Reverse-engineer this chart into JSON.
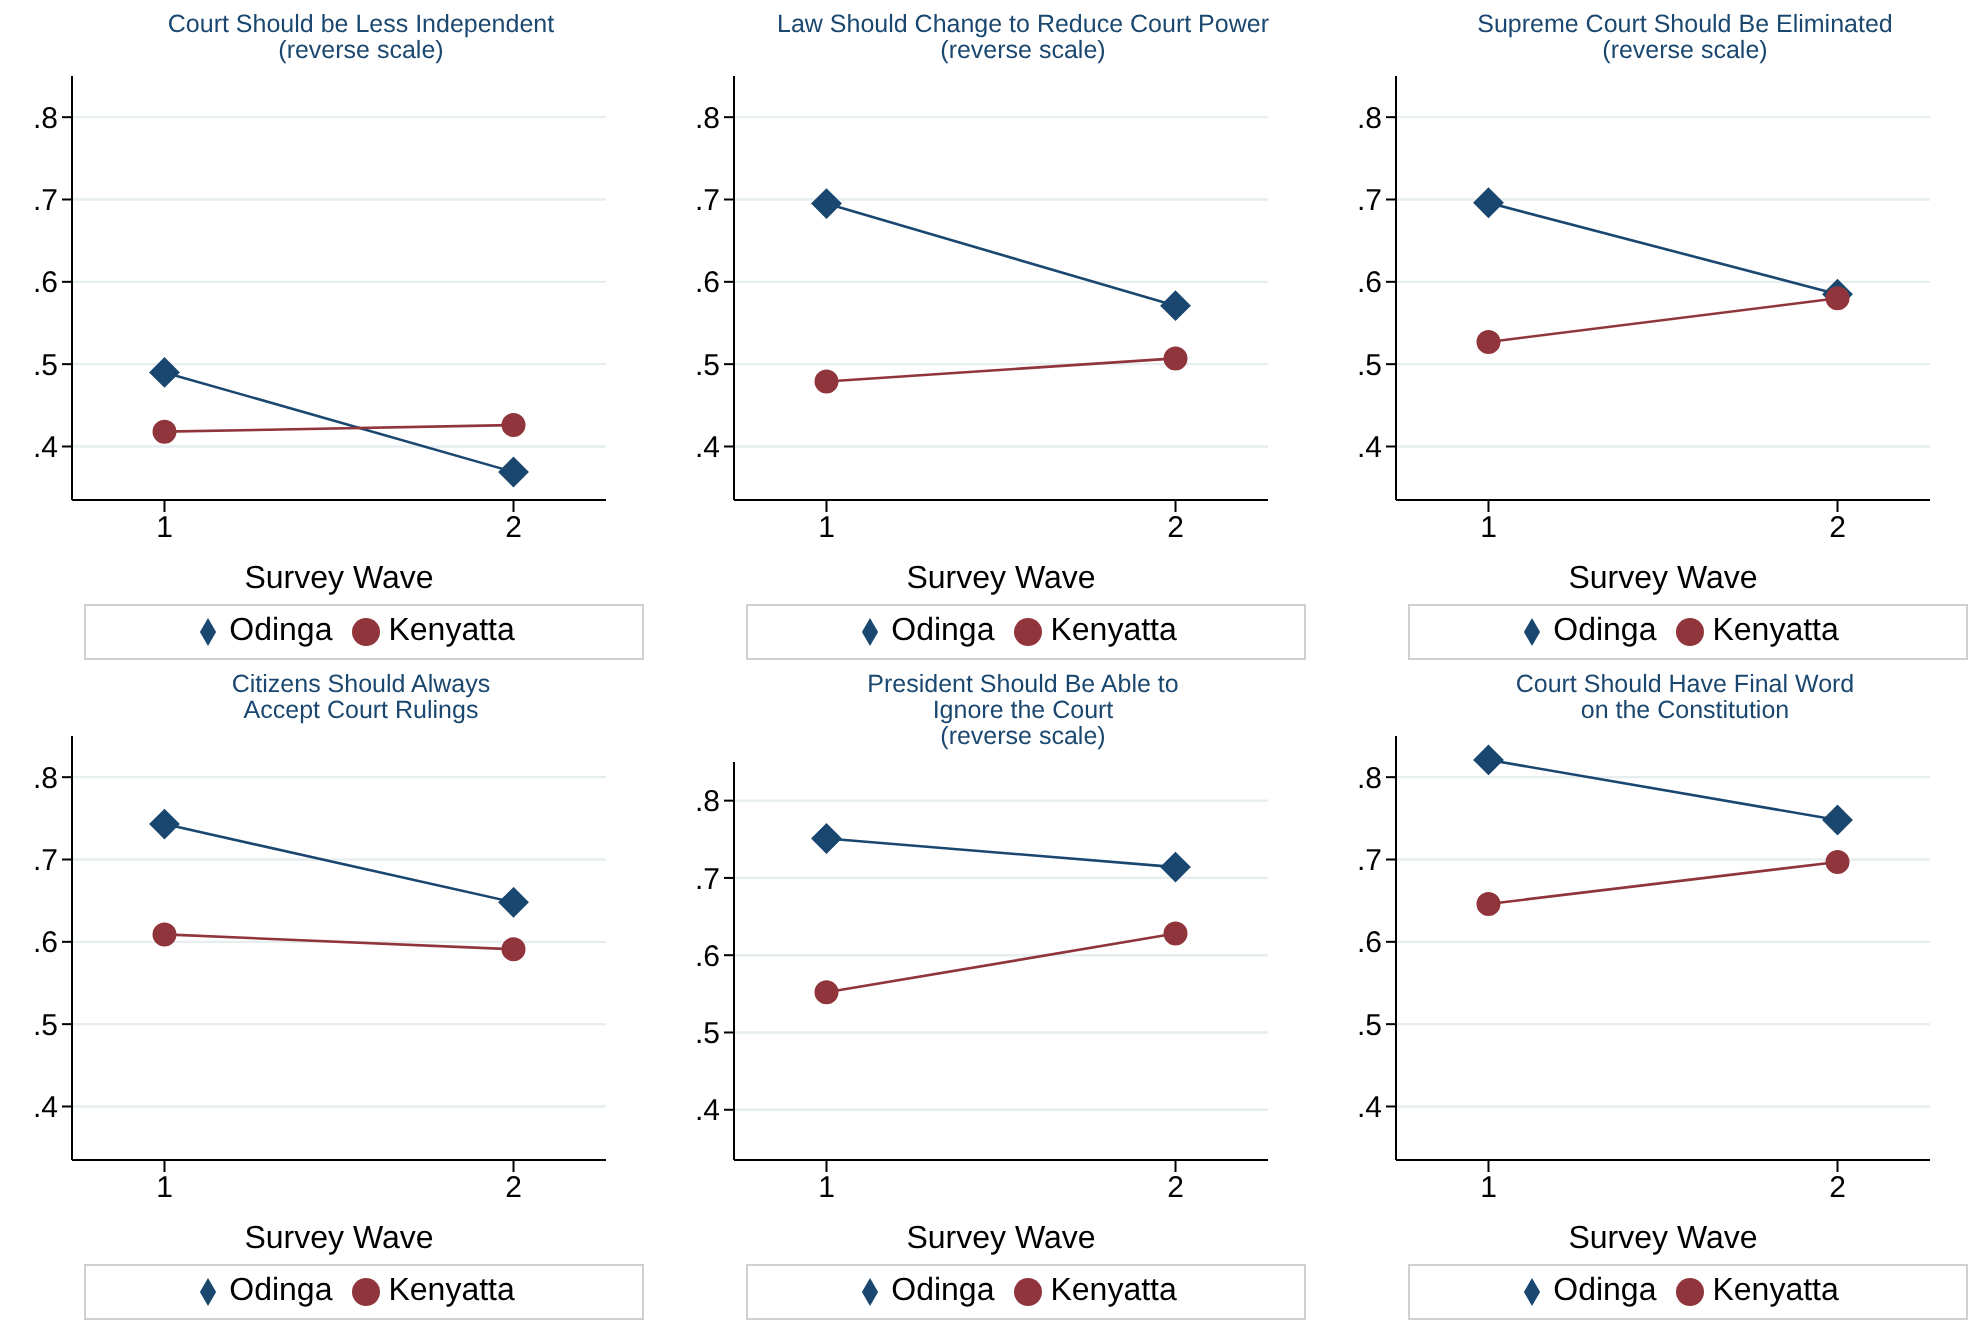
{
  "chart_data": [
    {
      "type": "line",
      "title": "Court Should be Less Independent\n(reverse scale)",
      "xlabel": "Survey Wave",
      "categories": [
        "1",
        "2"
      ],
      "ylim": [
        0.335,
        0.85
      ],
      "yticks": [
        {
          "value": 0.4,
          "label": ".4"
        },
        {
          "value": 0.5,
          "label": ".5"
        },
        {
          "value": 0.6,
          "label": ".6"
        },
        {
          "value": 0.7,
          "label": ".7"
        },
        {
          "value": 0.8,
          "label": ".8"
        }
      ],
      "grid": "y",
      "legend": "bottom",
      "series": [
        {
          "name": "Odinga",
          "color": "#1a476f",
          "marker": "diamond",
          "values": [
            0.49,
            0.369
          ]
        },
        {
          "name": "Kenyatta",
          "color": "#90353b",
          "marker": "circle",
          "values": [
            0.418,
            0.426
          ]
        }
      ]
    },
    {
      "type": "line",
      "title": "Law Should Change to Reduce Court Power\n(reverse scale)",
      "xlabel": "Survey Wave",
      "categories": [
        "1",
        "2"
      ],
      "ylim": [
        0.335,
        0.85
      ],
      "yticks": [
        {
          "value": 0.4,
          "label": ".4"
        },
        {
          "value": 0.5,
          "label": ".5"
        },
        {
          "value": 0.6,
          "label": ".6"
        },
        {
          "value": 0.7,
          "label": ".7"
        },
        {
          "value": 0.8,
          "label": ".8"
        }
      ],
      "grid": "y",
      "legend": "bottom",
      "series": [
        {
          "name": "Odinga",
          "color": "#1a476f",
          "marker": "diamond",
          "values": [
            0.695,
            0.571
          ]
        },
        {
          "name": "Kenyatta",
          "color": "#90353b",
          "marker": "circle",
          "values": [
            0.479,
            0.507
          ]
        }
      ]
    },
    {
      "type": "line",
      "title": "Supreme Court Should Be Eliminated\n(reverse scale)",
      "xlabel": "Survey Wave",
      "categories": [
        "1",
        "2"
      ],
      "ylim": [
        0.335,
        0.85
      ],
      "yticks": [
        {
          "value": 0.4,
          "label": ".4"
        },
        {
          "value": 0.5,
          "label": ".5"
        },
        {
          "value": 0.6,
          "label": ".6"
        },
        {
          "value": 0.7,
          "label": ".7"
        },
        {
          "value": 0.8,
          "label": ".8"
        }
      ],
      "grid": "y",
      "legend": "bottom",
      "series": [
        {
          "name": "Odinga",
          "color": "#1a476f",
          "marker": "diamond",
          "values": [
            0.696,
            0.585
          ]
        },
        {
          "name": "Kenyatta",
          "color": "#90353b",
          "marker": "circle",
          "values": [
            0.527,
            0.58
          ]
        }
      ]
    },
    {
      "type": "line",
      "title": "Citizens Should Always\nAccept Court Rulings",
      "xlabel": "Survey Wave",
      "categories": [
        "1",
        "2"
      ],
      "ylim": [
        0.335,
        0.85
      ],
      "yticks": [
        {
          "value": 0.4,
          "label": ".4"
        },
        {
          "value": 0.5,
          "label": ".5"
        },
        {
          "value": 0.6,
          "label": ".6"
        },
        {
          "value": 0.7,
          "label": ".7"
        },
        {
          "value": 0.8,
          "label": ".8"
        }
      ],
      "grid": "y",
      "legend": "bottom",
      "series": [
        {
          "name": "Odinga",
          "color": "#1a476f",
          "marker": "diamond",
          "values": [
            0.743,
            0.648
          ]
        },
        {
          "name": "Kenyatta",
          "color": "#90353b",
          "marker": "circle",
          "values": [
            0.609,
            0.591
          ]
        }
      ]
    },
    {
      "type": "line",
      "title": "President Should Be Able to\nIgnore the Court\n(reverse scale)",
      "xlabel": "Survey Wave",
      "categories": [
        "1",
        "2"
      ],
      "ylim": [
        0.335,
        0.85
      ],
      "yticks": [
        {
          "value": 0.4,
          "label": ".4"
        },
        {
          "value": 0.5,
          "label": ".5"
        },
        {
          "value": 0.6,
          "label": ".6"
        },
        {
          "value": 0.7,
          "label": ".7"
        },
        {
          "value": 0.8,
          "label": ".8"
        }
      ],
      "grid": "y",
      "legend": "bottom",
      "series": [
        {
          "name": "Odinga",
          "color": "#1a476f",
          "marker": "diamond",
          "values": [
            0.751,
            0.714
          ]
        },
        {
          "name": "Kenyatta",
          "color": "#90353b",
          "marker": "circle",
          "values": [
            0.552,
            0.628
          ]
        }
      ]
    },
    {
      "type": "line",
      "title": "Court Should Have Final Word\non the Constitution",
      "xlabel": "Survey Wave",
      "categories": [
        "1",
        "2"
      ],
      "ylim": [
        0.335,
        0.85
      ],
      "yticks": [
        {
          "value": 0.4,
          "label": ".4"
        },
        {
          "value": 0.5,
          "label": ".5"
        },
        {
          "value": 0.6,
          "label": ".6"
        },
        {
          "value": 0.7,
          "label": ".7"
        },
        {
          "value": 0.8,
          "label": ".8"
        }
      ],
      "grid": "y",
      "legend": "bottom",
      "series": [
        {
          "name": "Odinga",
          "color": "#1a476f",
          "marker": "diamond",
          "values": [
            0.821,
            0.748
          ]
        },
        {
          "name": "Kenyatta",
          "color": "#90353b",
          "marker": "circle",
          "values": [
            0.646,
            0.697
          ]
        }
      ]
    }
  ]
}
